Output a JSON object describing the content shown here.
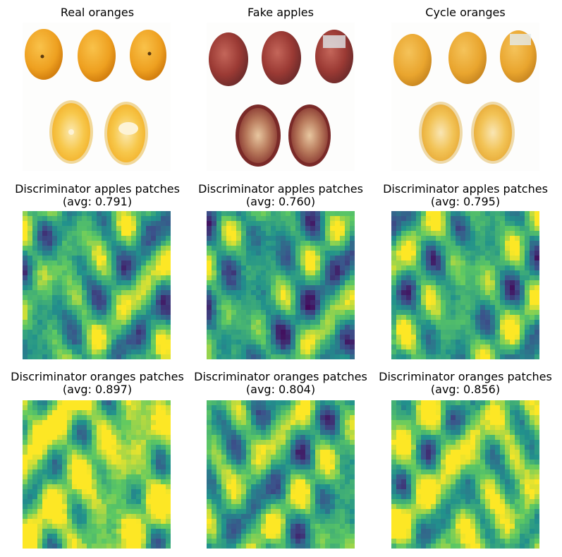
{
  "row1": {
    "titles": [
      "Real oranges",
      "Fake apples",
      "Cycle oranges"
    ]
  },
  "row2": {
    "titles": [
      {
        "line1": "Discriminator apples patches",
        "line2": "(avg: 0.791)",
        "avg": 0.791
      },
      {
        "line1": "Discriminator apples patches",
        "line2": "(avg: 0.760)",
        "avg": 0.76
      },
      {
        "line1": "Discriminator apples patches",
        "line2": "(avg: 0.795)",
        "avg": 0.795
      }
    ]
  },
  "row3": {
    "titles": [
      {
        "line1": "Discriminator oranges patches",
        "line2": "(avg: 0.897)",
        "avg": 0.897
      },
      {
        "line1": "Discriminator oranges patches",
        "line2": "(avg: 0.804)",
        "avg": 0.804
      },
      {
        "line1": "Discriminator oranges patches",
        "line2": "(avg: 0.856)",
        "avg": 0.856
      }
    ]
  },
  "colors": {
    "orange_skin": "#f2a521",
    "orange_flesh": "#f8c649",
    "apple_skin": "#a63a32",
    "colormap": "viridis"
  }
}
